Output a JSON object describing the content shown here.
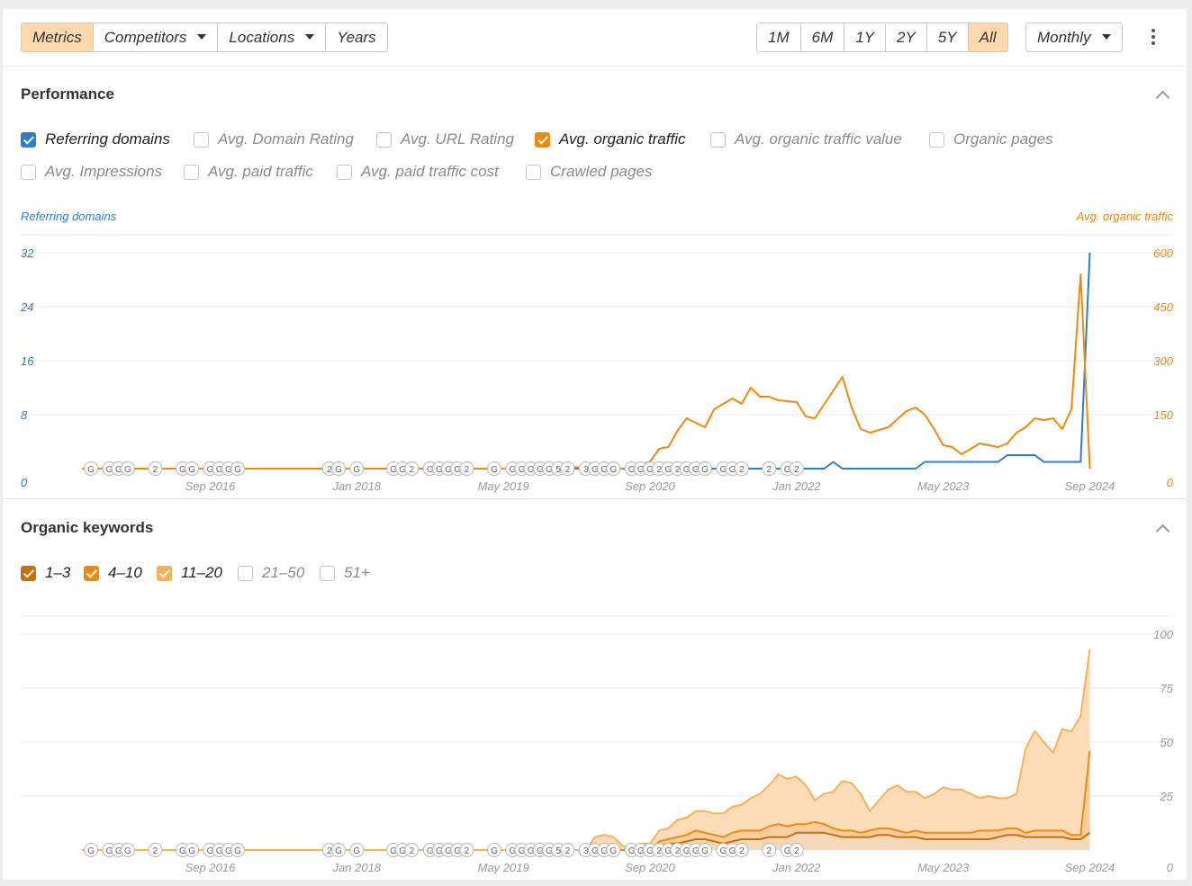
{
  "toolbar": {
    "left_buttons": [
      {
        "label": "Metrics",
        "active": true,
        "dropdown": false
      },
      {
        "label": "Competitors",
        "active": false,
        "dropdown": true
      },
      {
        "label": "Locations",
        "active": false,
        "dropdown": true
      },
      {
        "label": "Years",
        "active": false,
        "dropdown": false
      }
    ],
    "ranges": [
      {
        "label": "1M",
        "active": false
      },
      {
        "label": "6M",
        "active": false
      },
      {
        "label": "1Y",
        "active": false
      },
      {
        "label": "2Y",
        "active": false
      },
      {
        "label": "5Y",
        "active": false
      },
      {
        "label": "All",
        "active": true
      }
    ],
    "interval": "Monthly",
    "more_icon": "kebab-menu-icon"
  },
  "performance": {
    "title": "Performance",
    "metrics": [
      {
        "label": "Referring domains",
        "checked": true,
        "color": "#2e7dcc"
      },
      {
        "label": "Avg. Domain Rating",
        "checked": false
      },
      {
        "label": "Avg. URL Rating",
        "checked": false
      },
      {
        "label": "Avg. organic traffic",
        "checked": true,
        "color": "#f0890f"
      },
      {
        "label": "Avg. organic traffic value",
        "checked": false
      },
      {
        "label": "Organic pages",
        "checked": false
      },
      {
        "label": "Avg. Impressions",
        "checked": false
      },
      {
        "label": "Avg. paid traffic",
        "checked": false
      },
      {
        "label": "Avg. paid traffic cost",
        "checked": false
      },
      {
        "label": "Crawled pages",
        "checked": false
      }
    ]
  },
  "organic_keywords": {
    "title": "Organic keywords",
    "ranges": [
      {
        "label": "1–3",
        "checked": true,
        "color": "#c8700e"
      },
      {
        "label": "4–10",
        "checked": true,
        "color": "#f0890f"
      },
      {
        "label": "11–20",
        "checked": true,
        "color": "#f7b159"
      },
      {
        "label": "21–50",
        "checked": false
      },
      {
        "label": "51+",
        "checked": false
      }
    ]
  },
  "markers": [
    {
      "idx": 1,
      "label": "G"
    },
    {
      "idx": 3,
      "label": "G"
    },
    {
      "idx": 4,
      "label": "G"
    },
    {
      "idx": 5,
      "label": "G"
    },
    {
      "idx": 8,
      "label": "2"
    },
    {
      "idx": 11,
      "label": "G"
    },
    {
      "idx": 12,
      "label": "G"
    },
    {
      "idx": 14,
      "label": "G"
    },
    {
      "idx": 15,
      "label": "G"
    },
    {
      "idx": 16,
      "label": "G"
    },
    {
      "idx": 17,
      "label": "G"
    },
    {
      "idx": 27,
      "label": "2"
    },
    {
      "idx": 28,
      "label": "G"
    },
    {
      "idx": 30,
      "label": "G"
    },
    {
      "idx": 34,
      "label": "G"
    },
    {
      "idx": 35,
      "label": "G"
    },
    {
      "idx": 36,
      "label": "2"
    },
    {
      "idx": 38,
      "label": "G"
    },
    {
      "idx": 39,
      "label": "G"
    },
    {
      "idx": 40,
      "label": "G"
    },
    {
      "idx": 41,
      "label": "G"
    },
    {
      "idx": 42,
      "label": "2"
    },
    {
      "idx": 45,
      "label": "G"
    },
    {
      "idx": 47,
      "label": "G"
    },
    {
      "idx": 48,
      "label": "G"
    },
    {
      "idx": 49,
      "label": "G"
    },
    {
      "idx": 50,
      "label": "G"
    },
    {
      "idx": 51,
      "label": "G"
    },
    {
      "idx": 52,
      "label": "5"
    },
    {
      "idx": 53,
      "label": "2"
    },
    {
      "idx": 55,
      "label": "3"
    },
    {
      "idx": 56,
      "label": "G"
    },
    {
      "idx": 57,
      "label": "G"
    },
    {
      "idx": 58,
      "label": "G"
    },
    {
      "idx": 60,
      "label": "G"
    },
    {
      "idx": 61,
      "label": "G"
    },
    {
      "idx": 62,
      "label": "G"
    },
    {
      "idx": 63,
      "label": "2"
    },
    {
      "idx": 64,
      "label": "G"
    },
    {
      "idx": 65,
      "label": "2"
    },
    {
      "idx": 66,
      "label": "G"
    },
    {
      "idx": 67,
      "label": "G"
    },
    {
      "idx": 68,
      "label": "G"
    },
    {
      "idx": 70,
      "label": "G"
    },
    {
      "idx": 71,
      "label": "G"
    },
    {
      "idx": 72,
      "label": "2"
    },
    {
      "idx": 75,
      "label": "2"
    },
    {
      "idx": 77,
      "label": "G"
    },
    {
      "idx": 78,
      "label": "2"
    }
  ],
  "chart_data": [
    {
      "type": "line",
      "left_axis_title": "Referring domains",
      "right_axis_title": "Avg. organic traffic",
      "x_ticks": [
        "Sep 2016",
        "Jan 2018",
        "May 2019",
        "Sep 2020",
        "Jan 2022",
        "May 2023",
        "Sep 2024"
      ],
      "y_left": {
        "ticks": [
          "0",
          "8",
          "16",
          "24",
          "32"
        ],
        "range": [
          0,
          32
        ]
      },
      "y_right": {
        "ticks": [
          "0",
          "150",
          "300",
          "450",
          "600"
        ],
        "range": [
          0,
          600
        ]
      },
      "x_range": [
        "Jul 2015",
        "Dec 2024"
      ],
      "grid": true,
      "series": [
        {
          "name": "Referring domains",
          "axis": "left",
          "color": "#2e7dcc",
          "x": [
            "Jun 2019",
            "Aug 2020",
            "Sep 2020",
            "Apr 2022",
            "May 2022",
            "Jun 2022",
            "Feb 2023",
            "Mar 2023",
            "Nov 2023",
            "Dec 2023",
            "Mar 2024",
            "Apr 2024",
            "Jun 2024",
            "Aug 2024",
            "Sep 2024"
          ],
          "values": [
            0,
            0,
            0,
            0,
            1,
            0,
            0,
            1,
            1,
            2,
            2,
            1,
            1,
            1,
            32
          ]
        },
        {
          "name": "Avg. organic traffic",
          "axis": "right",
          "color": "#f0890f",
          "x": [
            "Jul 2015",
            "Jun 2019",
            "Aug 2019",
            "Sep 2019",
            "Jan 2020",
            "Mar 2020",
            "Jul 2020",
            "Aug 2020",
            "Sep 2020",
            "Oct 2020",
            "Nov 2020",
            "Dec 2020",
            "Jan 2021",
            "Mar 2021",
            "Apr 2021",
            "Jun 2021",
            "Jul 2021",
            "Aug 2021",
            "Sep 2021",
            "Oct 2021",
            "Nov 2021",
            "Jan 2022",
            "Feb 2022",
            "Mar 2022",
            "Jun 2022",
            "Jul 2022",
            "Aug 2022",
            "Sep 2022",
            "Nov 2022",
            "Jan 2023",
            "Feb 2023",
            "Mar 2023",
            "Apr 2023",
            "May 2023",
            "Jun 2023",
            "Jul 2023",
            "Sep 2023",
            "Oct 2023",
            "Nov 2023",
            "Dec 2023",
            "Jan 2024",
            "Feb 2024",
            "Mar 2024",
            "Apr 2024",
            "May 2024",
            "Jun 2024",
            "Jul 2024",
            "Aug 2024",
            "Sep 2024"
          ],
          "values": [
            0,
            0,
            0,
            4,
            4,
            0,
            0,
            10,
            20,
            55,
            60,
            105,
            140,
            115,
            165,
            195,
            180,
            225,
            200,
            200,
            190,
            185,
            145,
            140,
            255,
            170,
            110,
            100,
            115,
            160,
            170,
            150,
            110,
            65,
            60,
            40,
            70,
            65,
            60,
            70,
            100,
            115,
            140,
            135,
            140,
            110,
            165,
            540,
            0
          ]
        }
      ]
    },
    {
      "type": "area",
      "x_ticks": [
        "Sep 2016",
        "Jan 2018",
        "May 2019",
        "Sep 2020",
        "Jan 2022",
        "May 2023",
        "Sep 2024"
      ],
      "y": {
        "ticks": [
          "0",
          "25",
          "50",
          "75",
          "100"
        ],
        "range": [
          0,
          100
        ]
      },
      "x_range": [
        "Jul 2015",
        "Dec 2024"
      ],
      "stacked": true,
      "grid": true,
      "series": [
        {
          "name": "1–3",
          "color": "#c8700e",
          "x": [
            "Jul 2015",
            "Sep 2020",
            "Oct 2020",
            "Nov 2020",
            "Dec 2020",
            "Jan 2021",
            "Feb 2021",
            "Mar 2021",
            "Apr 2021",
            "May 2021",
            "Jun 2021",
            "Jul 2021",
            "Aug 2021",
            "Sep 2021",
            "Oct 2021",
            "Nov 2021",
            "Dec 2021",
            "Jan 2022",
            "Feb 2022",
            "Mar 2022",
            "Apr 2022",
            "May 2022",
            "Jun 2022",
            "Jul 2022",
            "Aug 2022",
            "Sep 2022",
            "Oct 2022",
            "Nov 2022",
            "Dec 2022",
            "Jan 2023",
            "Feb 2023",
            "Mar 2023",
            "Apr 2023",
            "May 2023",
            "Jun 2023",
            "Jul 2023",
            "Aug 2023",
            "Sep 2023",
            "Oct 2023",
            "Nov 2023",
            "Dec 2023",
            "Jan 2024",
            "Feb 2024",
            "Mar 2024",
            "Apr 2024",
            "May 2024",
            "Jun 2024",
            "Jul 2024",
            "Aug 2024",
            "Sep 2024"
          ],
          "values": [
            0,
            0,
            2,
            3,
            3,
            4,
            5,
            5,
            4,
            3,
            4,
            5,
            5,
            5,
            6,
            6,
            6,
            8,
            8,
            8,
            8,
            7,
            6,
            6,
            6,
            6,
            7,
            7,
            6,
            6,
            6,
            5,
            5,
            5,
            5,
            5,
            5,
            5,
            5,
            6,
            7,
            7,
            6,
            6,
            6,
            6,
            6,
            5,
            5,
            8
          ]
        },
        {
          "name": "4–10",
          "color": "#f0890f",
          "x": [
            "Jul 2015",
            "Sep 2020",
            "Oct 2020",
            "Nov 2020",
            "Dec 2020",
            "Jan 2021",
            "Feb 2021",
            "Mar 2021",
            "Apr 2021",
            "May 2021",
            "Jun 2021",
            "Jul 2021",
            "Aug 2021",
            "Sep 2021",
            "Oct 2021",
            "Nov 2021",
            "Dec 2021",
            "Jan 2022",
            "Feb 2022",
            "Mar 2022",
            "Apr 2022",
            "May 2022",
            "Jun 2022",
            "Jul 2022",
            "Aug 2022",
            "Sep 2022",
            "Oct 2022",
            "Nov 2022",
            "Dec 2022",
            "Jan 2023",
            "Feb 2023",
            "Mar 2023",
            "Apr 2023",
            "May 2023",
            "Jun 2023",
            "Jul 2023",
            "Aug 2023",
            "Sep 2023",
            "Oct 2023",
            "Nov 2023",
            "Dec 2023",
            "Jan 2024",
            "Feb 2024",
            "Mar 2024",
            "Apr 2024",
            "May 2024",
            "Jun 2024",
            "Jul 2024",
            "Aug 2024",
            "Sep 2024"
          ],
          "values": [
            0,
            0,
            2,
            2,
            3,
            3,
            4,
            3,
            3,
            3,
            4,
            4,
            4,
            4,
            5,
            6,
            5,
            4,
            4,
            5,
            4,
            3,
            3,
            3,
            2,
            3,
            3,
            3,
            3,
            2,
            3,
            3,
            3,
            3,
            3,
            3,
            3,
            4,
            4,
            3,
            3,
            3,
            2,
            3,
            3,
            3,
            3,
            2,
            2,
            38
          ]
        },
        {
          "name": "11–20",
          "color": "#f7b159",
          "x": [
            "Jul 2015",
            "Feb 2020",
            "Mar 2020",
            "Apr 2020",
            "May 2020",
            "Jun 2020",
            "Jul 2020",
            "Aug 2020",
            "Sep 2020",
            "Oct 2020",
            "Nov 2020",
            "Dec 2020",
            "Jan 2021",
            "Feb 2021",
            "Mar 2021",
            "Apr 2021",
            "May 2021",
            "Jun 2021",
            "Jul 2021",
            "Aug 2021",
            "Sep 2021",
            "Oct 2021",
            "Nov 2021",
            "Dec 2021",
            "Jan 2022",
            "Feb 2022",
            "Mar 2022",
            "Apr 2022",
            "May 2022",
            "Jun 2022",
            "Jul 2022",
            "Aug 2022",
            "Sep 2022",
            "Oct 2022",
            "Nov 2022",
            "Dec 2022",
            "Jan 2023",
            "Feb 2023",
            "Mar 2023",
            "Apr 2023",
            "May 2023",
            "Jun 2023",
            "Jul 2023",
            "Aug 2023",
            "Sep 2023",
            "Oct 2023",
            "Nov 2023",
            "Dec 2023",
            "Jan 2024",
            "Feb 2024",
            "Mar 2024",
            "Apr 2024",
            "May 2024",
            "Jun 2024",
            "Jul 2024",
            "Aug 2024",
            "Sep 2024"
          ],
          "values": [
            0,
            0,
            6,
            7,
            6,
            2,
            1,
            3,
            3,
            5,
            5,
            8,
            8,
            9,
            10,
            10,
            11,
            12,
            12,
            15,
            17,
            19,
            23,
            22,
            22,
            18,
            10,
            14,
            17,
            23,
            22,
            18,
            9,
            13,
            18,
            21,
            19,
            18,
            16,
            18,
            21,
            20,
            20,
            18,
            15,
            16,
            15,
            14,
            16,
            39,
            46,
            41,
            36,
            47,
            48,
            55,
            47
          ]
        }
      ]
    }
  ]
}
